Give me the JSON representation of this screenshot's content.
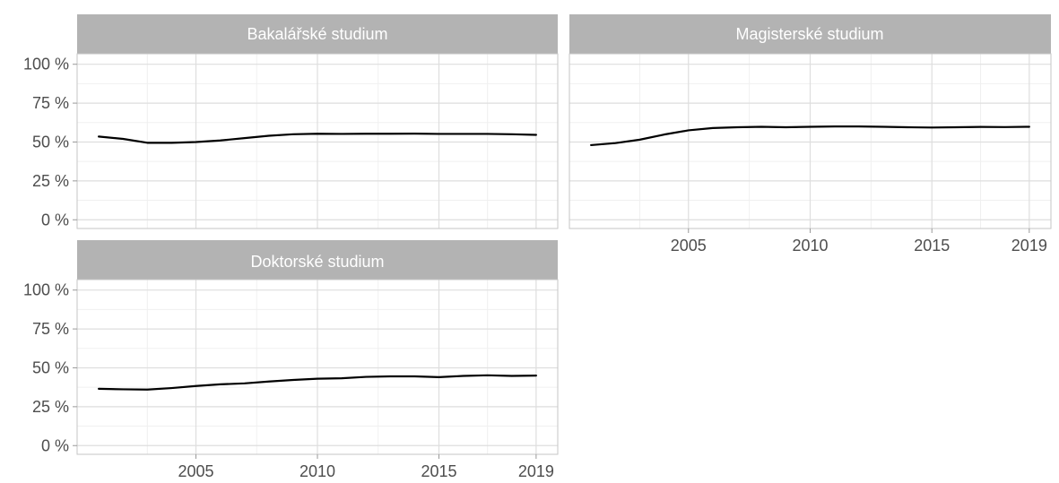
{
  "chart_data": {
    "type": "line",
    "layout": "facet-wrap",
    "grid": true,
    "x_ticks": [
      "2005",
      "2010",
      "2015",
      "2019"
    ],
    "x_tick_values": [
      2005,
      2010,
      2015,
      2019
    ],
    "xlim": [
      2001,
      2019
    ],
    "y_ticks": [
      "0 %",
      "25 %",
      "50 %",
      "75 %",
      "100 %"
    ],
    "y_tick_values": [
      0,
      25,
      50,
      75,
      100
    ],
    "ylim": [
      0,
      100
    ],
    "line_color": "#000000",
    "strip_color": "#b3b3b3",
    "panels": [
      {
        "title": "Bakalářské studium",
        "x": [
          2001,
          2002,
          2003,
          2004,
          2005,
          2006,
          2007,
          2008,
          2009,
          2010,
          2011,
          2012,
          2013,
          2014,
          2015,
          2016,
          2017,
          2018,
          2019
        ],
        "y": [
          53.5,
          52,
          49.5,
          49.5,
          50,
          51,
          52.5,
          54,
          55,
          55.3,
          55.2,
          55.3,
          55.3,
          55.4,
          55.2,
          55.2,
          55.2,
          55,
          54.6
        ]
      },
      {
        "title": "Magisterské studium",
        "x": [
          2001,
          2002,
          2003,
          2004,
          2005,
          2006,
          2007,
          2008,
          2009,
          2010,
          2011,
          2012,
          2013,
          2014,
          2015,
          2016,
          2017,
          2018,
          2019
        ],
        "y": [
          48,
          49.3,
          51.5,
          54.8,
          57.5,
          59,
          59.5,
          59.8,
          59.5,
          59.8,
          60,
          60,
          59.8,
          59.5,
          59.3,
          59.5,
          59.7,
          59.6,
          59.8
        ]
      },
      {
        "title": "Doktorské studium",
        "x": [
          2001,
          2002,
          2003,
          2004,
          2005,
          2006,
          2007,
          2008,
          2009,
          2010,
          2011,
          2012,
          2013,
          2014,
          2015,
          2016,
          2017,
          2018,
          2019
        ],
        "y": [
          36.5,
          36.2,
          36,
          37,
          38.3,
          39.4,
          40,
          41.2,
          42.2,
          43,
          43.3,
          44.2,
          44.5,
          44.5,
          44,
          44.8,
          45.2,
          44.8,
          45
        ]
      }
    ]
  }
}
